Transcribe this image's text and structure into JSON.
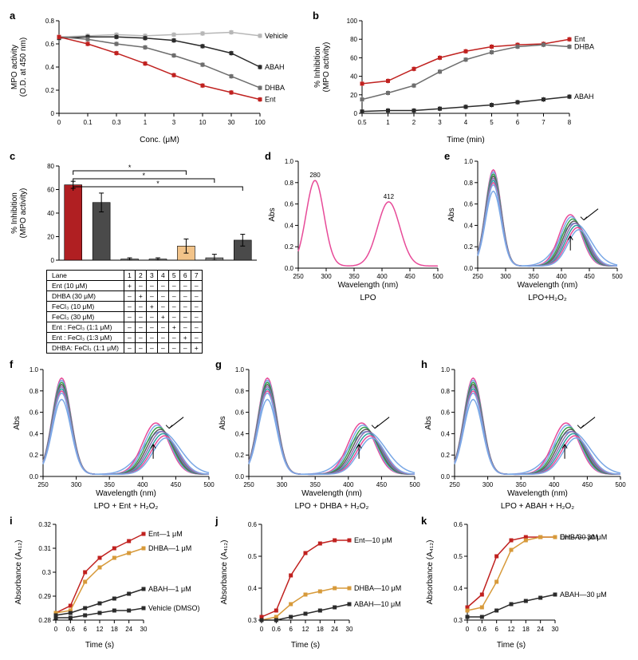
{
  "colors": {
    "vehicle": "#b7b7b7",
    "abah": "#2b2b2b",
    "dhba": "#6e6e6e",
    "ent": "#c0211f",
    "dhba_orange": "#d79a3a",
    "spec_a": "#e74a98",
    "spec_b": "#7aa8e6",
    "spec_c": "#3aa24b",
    "spec_mix": "#5c5c5c",
    "bar_red": "#b01f22",
    "bar_gray": "#808080",
    "bar_dark": "#4a4a4a",
    "bar_light": "#f2c389",
    "axis": "#000000",
    "bg": "#ffffff"
  },
  "panel_a": {
    "type": "line",
    "xlabel": "Conc. (μM)",
    "ylabel": "MPO activity\n(O.D. at 450 nm)",
    "x_categories": [
      0,
      0.1,
      0.3,
      1,
      3,
      10,
      30,
      100
    ],
    "ylim": [
      0,
      0.8
    ],
    "ytick_step": 0.2,
    "series": {
      "Vehicle": {
        "color_key": "vehicle",
        "y": [
          0.66,
          0.67,
          0.68,
          0.67,
          0.68,
          0.69,
          0.7,
          0.67
        ]
      },
      "ABAH": {
        "color_key": "abah",
        "y": [
          0.65,
          0.66,
          0.66,
          0.65,
          0.63,
          0.58,
          0.52,
          0.4
        ]
      },
      "DHBA": {
        "color_key": "dhba",
        "y": [
          0.66,
          0.64,
          0.6,
          0.57,
          0.5,
          0.42,
          0.32,
          0.22
        ]
      },
      "Ent": {
        "color_key": "ent",
        "y": [
          0.66,
          0.6,
          0.52,
          0.43,
          0.33,
          0.24,
          0.18,
          0.12
        ]
      }
    },
    "legend_order": [
      "Vehicle",
      "ABAH",
      "DHBA",
      "Ent"
    ]
  },
  "panel_b": {
    "type": "line",
    "xlabel": "Time (min)",
    "ylabel": "% Inhibition\n(MPO activity)",
    "x_categories": [
      0.5,
      1,
      2,
      3,
      4,
      5,
      6,
      7,
      8
    ],
    "ylim": [
      0,
      100
    ],
    "ytick_step": 20,
    "series": {
      "Ent": {
        "color_key": "ent",
        "y": [
          32,
          35,
          48,
          60,
          67,
          72,
          74,
          75,
          80
        ]
      },
      "DHBA": {
        "color_key": "dhba",
        "y": [
          15,
          22,
          30,
          45,
          58,
          66,
          72,
          74,
          72
        ]
      },
      "ABAH": {
        "color_key": "abah",
        "y": [
          2,
          3,
          3,
          5,
          7,
          9,
          12,
          15,
          18
        ]
      }
    },
    "legend_order": [
      "Ent",
      "DHBA",
      "ABAH"
    ]
  },
  "panel_c": {
    "type": "bar",
    "ylabel": "% Inhibition\n(MPO activity)",
    "ylim": [
      0,
      80
    ],
    "ytick_step": 20,
    "bars": [
      {
        "lane": 1,
        "value": 64,
        "err": 3,
        "color_key": "bar_red"
      },
      {
        "lane": 2,
        "value": 49,
        "err": 8,
        "color_key": "bar_dark"
      },
      {
        "lane": 3,
        "value": 1,
        "err": 1,
        "color_key": "bar_gray"
      },
      {
        "lane": 4,
        "value": 1,
        "err": 1,
        "color_key": "bar_gray"
      },
      {
        "lane": 5,
        "value": 12,
        "err": 6,
        "color_key": "bar_light"
      },
      {
        "lane": 6,
        "value": 2,
        "err": 3,
        "color_key": "bar_gray"
      },
      {
        "lane": 7,
        "value": 17,
        "err": 5,
        "color_key": "bar_dark"
      }
    ],
    "sig": [
      {
        "from": 1,
        "to": 5,
        "label": "*"
      },
      {
        "from": 1,
        "to": 6,
        "label": "*"
      },
      {
        "from": 1,
        "to": 7,
        "label": "*"
      }
    ],
    "table": {
      "header": "Lane",
      "lanes": [
        1,
        2,
        3,
        4,
        5,
        6,
        7
      ],
      "rows": [
        {
          "label": "Ent (10 μM)",
          "vals": [
            "+",
            "–",
            "–",
            "–",
            "–",
            "–",
            "–"
          ]
        },
        {
          "label": "DHBA (30 μM)",
          "vals": [
            "–",
            "+",
            "–",
            "–",
            "–",
            "–",
            "–"
          ]
        },
        {
          "label": "FeCl₃ (10 μM)",
          "vals": [
            "–",
            "–",
            "+",
            "–",
            "–",
            "–",
            "–"
          ]
        },
        {
          "label": "FeCl₃ (30 μM)",
          "vals": [
            "–",
            "–",
            "–",
            "+",
            "–",
            "–",
            "–"
          ]
        },
        {
          "label": "Ent : FeCl₃ (1:1 μM)",
          "vals": [
            "–",
            "–",
            "–",
            "–",
            "+",
            "–",
            "–"
          ]
        },
        {
          "label": "Ent : FeCl₃ (1:3 μM)",
          "vals": [
            "–",
            "–",
            "–",
            "–",
            "–",
            "+",
            "–"
          ]
        },
        {
          "label": "DHBA: FeCl₃ (1:1 μM)",
          "vals": [
            "–",
            "–",
            "–",
            "–",
            "–",
            "–",
            "+"
          ]
        }
      ]
    }
  },
  "panels_spectra": {
    "xlabel": "Wavelength (nm)",
    "ylabel": "Abs",
    "xlim": [
      250,
      500
    ],
    "xtick_step": 50,
    "ylim": [
      0,
      1.0
    ],
    "ytick_step": 0.2,
    "peak_labels": {
      "a": "280",
      "b": "412"
    },
    "d": {
      "caption": "LPO"
    },
    "e": {
      "caption": "LPO+H₂O₂"
    },
    "f": {
      "caption": "LPO + Ent + H₂O₂"
    },
    "g": {
      "caption": "LPO + DHBA + H₂O₂"
    },
    "h": {
      "caption": "LPO + ABAH + H₂O₂"
    }
  },
  "panel_ijk": {
    "xlabel": "Time (s)",
    "ylabel_i": "Absorbance (A₄₁₂)",
    "ylabel_j": "Absorbance (A₄₁₂)",
    "ylabel_k": "Absorbance (A₄₁₂)",
    "x_categories": [
      0,
      0.6,
      6,
      12,
      18,
      24,
      30
    ],
    "i": {
      "ylim": [
        0.28,
        0.32
      ],
      "yticks": [
        0.28,
        0.29,
        0.3,
        0.31,
        0.32
      ],
      "series": {
        "Ent—1 μM": {
          "color_key": "ent",
          "y": [
            0.283,
            0.286,
            0.3,
            0.306,
            0.31,
            0.313,
            0.316
          ]
        },
        "DHBA—1 μM": {
          "color_key": "dhba_orange",
          "y": [
            0.283,
            0.284,
            0.296,
            0.302,
            0.306,
            0.308,
            0.31
          ]
        },
        "ABAH—1 μM": {
          "color_key": "abah",
          "y": [
            0.282,
            0.283,
            0.285,
            0.287,
            0.289,
            0.291,
            0.293
          ]
        },
        "Vehicle (DMSO)": {
          "color_key": "abah",
          "y": [
            0.281,
            0.281,
            0.282,
            0.283,
            0.284,
            0.284,
            0.285
          ]
        }
      },
      "legend_order": [
        "Ent—1 μM",
        "DHBA—1 μM",
        "ABAH—1 μM",
        "Vehicle (DMSO)"
      ]
    },
    "j": {
      "ylim": [
        0.3,
        0.6
      ],
      "yticks": [
        0.3,
        0.4,
        0.5,
        0.6
      ],
      "series": {
        "Ent—10 μM": {
          "color_key": "ent",
          "y": [
            0.31,
            0.33,
            0.44,
            0.51,
            0.54,
            0.55,
            0.55
          ]
        },
        "DHBA—10 μM": {
          "color_key": "dhba_orange",
          "y": [
            0.3,
            0.31,
            0.35,
            0.38,
            0.39,
            0.4,
            0.4
          ]
        },
        "ABAH—10 μM": {
          "color_key": "abah",
          "y": [
            0.3,
            0.3,
            0.31,
            0.32,
            0.33,
            0.34,
            0.35
          ]
        }
      },
      "legend_order": [
        "Ent—10 μM",
        "DHBA—10 μM",
        "ABAH—10 μM"
      ]
    },
    "k": {
      "ylim": [
        0.3,
        0.6
      ],
      "yticks": [
        0.3,
        0.4,
        0.5,
        0.6
      ],
      "series": {
        "Ent—30 μM": {
          "color_key": "ent",
          "y": [
            0.34,
            0.38,
            0.5,
            0.55,
            0.56,
            0.56,
            0.56
          ]
        },
        "DHBA—30 μM": {
          "color_key": "dhba_orange",
          "y": [
            0.33,
            0.34,
            0.42,
            0.52,
            0.55,
            0.56,
            0.56
          ]
        },
        "ABAH—30 μM": {
          "color_key": "abah",
          "y": [
            0.31,
            0.31,
            0.33,
            0.35,
            0.36,
            0.37,
            0.38
          ]
        }
      },
      "legend_order": [
        "Ent—30 μM",
        "DHBA—30 μM",
        "ABAH—30 μM"
      ]
    }
  }
}
